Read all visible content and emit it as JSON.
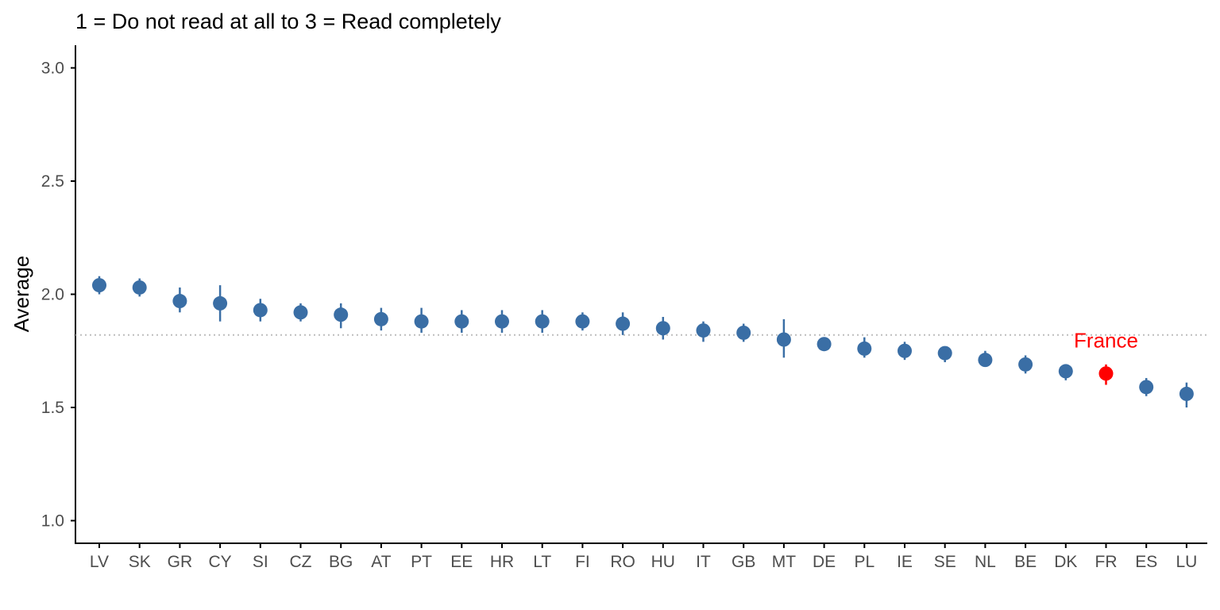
{
  "chart_data": {
    "type": "scatter",
    "title": "",
    "subtitle": "1 = Do not read at all to 3 = Read completely",
    "xlabel": "",
    "ylabel": "Average",
    "ylim": [
      0.9,
      3.1
    ],
    "yticks": [
      "1.0",
      "1.5",
      "2.0",
      "2.5",
      "3.0"
    ],
    "grid": false,
    "legend": "none",
    "reference_line": {
      "value": 1.82,
      "style": "dotted",
      "color": "#bdbdbd"
    },
    "categories": [
      "LV",
      "SK",
      "GR",
      "CY",
      "SI",
      "CZ",
      "BG",
      "AT",
      "PT",
      "EE",
      "HR",
      "LT",
      "FI",
      "RO",
      "HU",
      "IT",
      "GB",
      "MT",
      "DE",
      "PL",
      "IE",
      "SE",
      "NL",
      "BE",
      "DK",
      "FR",
      "ES",
      "LU"
    ],
    "values": [
      2.04,
      2.03,
      1.97,
      1.96,
      1.93,
      1.92,
      1.91,
      1.89,
      1.88,
      1.88,
      1.88,
      1.88,
      1.88,
      1.87,
      1.85,
      1.84,
      1.83,
      1.8,
      1.78,
      1.76,
      1.75,
      1.74,
      1.71,
      1.69,
      1.66,
      1.65,
      1.59,
      1.56
    ],
    "ci_low": [
      2.0,
      1.99,
      1.92,
      1.88,
      1.88,
      1.88,
      1.85,
      1.84,
      1.83,
      1.83,
      1.83,
      1.83,
      1.84,
      1.82,
      1.8,
      1.79,
      1.79,
      1.72,
      1.75,
      1.72,
      1.71,
      1.7,
      1.68,
      1.65,
      1.62,
      1.6,
      1.55,
      1.5
    ],
    "ci_high": [
      2.08,
      2.07,
      2.03,
      2.04,
      1.98,
      1.96,
      1.96,
      1.94,
      1.94,
      1.93,
      1.93,
      1.93,
      1.92,
      1.92,
      1.9,
      1.88,
      1.87,
      1.89,
      1.81,
      1.81,
      1.79,
      1.77,
      1.75,
      1.73,
      1.69,
      1.69,
      1.63,
      1.61
    ],
    "highlight": {
      "category": "FR",
      "color": "#ff0000",
      "label": "France"
    },
    "point_color": "#3a6ea5",
    "annotation_color": "#ff0000",
    "axis_color": "#000000",
    "tick_label_color": "#4d4d4d"
  }
}
